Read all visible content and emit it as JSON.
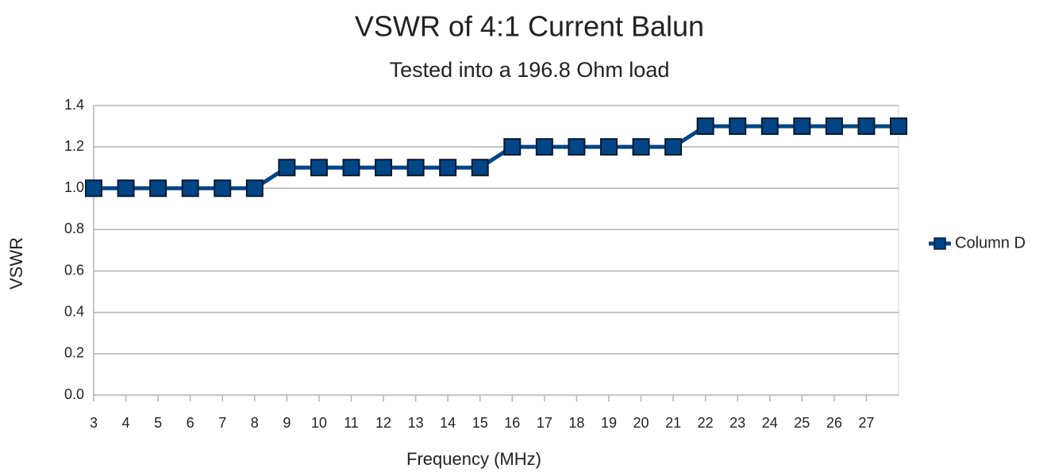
{
  "chart_data": {
    "type": "line",
    "title": "VSWR of 4:1 Current Balun",
    "subtitle": "Tested into a 196.8 Ohm load",
    "x_label": "Frequency (MHz)",
    "y_label": "VSWR",
    "x": [
      3,
      4,
      5,
      6,
      7,
      8,
      9,
      10,
      11,
      12,
      13,
      14,
      15,
      16,
      17,
      18,
      19,
      20,
      21,
      22,
      23,
      24,
      25,
      26,
      27,
      28
    ],
    "series": [
      {
        "name": "Column D",
        "color": "#004586",
        "values": [
          1.0,
          1.0,
          1.0,
          1.0,
          1.0,
          1.0,
          1.1,
          1.1,
          1.1,
          1.1,
          1.1,
          1.1,
          1.1,
          1.2,
          1.2,
          1.2,
          1.2,
          1.2,
          1.2,
          1.3,
          1.3,
          1.3,
          1.3,
          1.3,
          1.3,
          1.3
        ]
      }
    ],
    "xlim": [
      3,
      28
    ],
    "xticks": [
      3,
      4,
      5,
      6,
      7,
      8,
      9,
      10,
      11,
      12,
      13,
      14,
      15,
      16,
      17,
      18,
      19,
      20,
      21,
      22,
      23,
      24,
      25,
      26,
      27
    ],
    "ylim": [
      0,
      1.4
    ],
    "yticks": [
      {
        "value": 0,
        "label": "0.0"
      },
      0.2,
      0.4,
      0.6,
      0.8,
      {
        "value": 1,
        "label": "1.0"
      },
      1.2,
      1.4
    ],
    "grid": true,
    "legend": "right"
  }
}
